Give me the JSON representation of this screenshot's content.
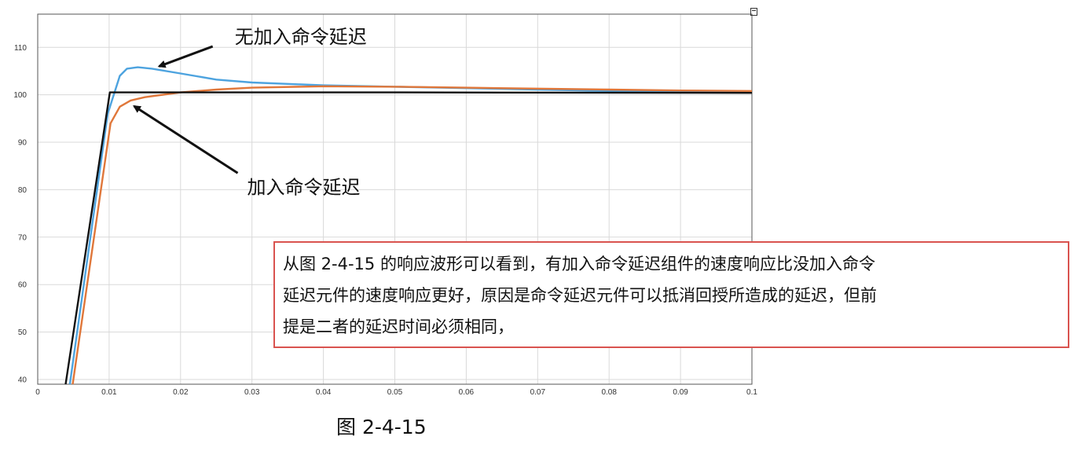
{
  "chart_data": {
    "type": "line",
    "x_range": [
      0,
      0.1
    ],
    "y_range": [
      39,
      117
    ],
    "x_ticks": [
      "0",
      "0.01",
      "0.02",
      "0.03",
      "0.04",
      "0.05",
      "0.06",
      "0.07",
      "0.08",
      "0.09",
      "0.1"
    ],
    "y_ticks": [
      "40",
      "50",
      "60",
      "70",
      "80",
      "90",
      "100",
      "110"
    ],
    "grid": true,
    "series": [
      {
        "color": "#4da3df",
        "points": [
          [
            0.0045,
            39
          ],
          [
            0.0098,
            96
          ],
          [
            0.0115,
            104
          ],
          [
            0.0125,
            105.5
          ],
          [
            0.014,
            105.8
          ],
          [
            0.016,
            105.5
          ],
          [
            0.02,
            104.5
          ],
          [
            0.025,
            103.2
          ],
          [
            0.03,
            102.6
          ],
          [
            0.04,
            102.0
          ],
          [
            0.05,
            101.7
          ],
          [
            0.06,
            101.4
          ],
          [
            0.07,
            101.1
          ],
          [
            0.08,
            100.8
          ],
          [
            0.09,
            100.6
          ],
          [
            0.1,
            100.5
          ]
        ]
      },
      {
        "color": "#e0773a",
        "points": [
          [
            0.0049,
            39
          ],
          [
            0.0102,
            94
          ],
          [
            0.0115,
            97.5
          ],
          [
            0.013,
            98.8
          ],
          [
            0.015,
            99.5
          ],
          [
            0.02,
            100.5
          ],
          [
            0.025,
            101.1
          ],
          [
            0.03,
            101.5
          ],
          [
            0.04,
            101.8
          ],
          [
            0.05,
            101.7
          ],
          [
            0.06,
            101.5
          ],
          [
            0.07,
            101.3
          ],
          [
            0.08,
            101.1
          ],
          [
            0.09,
            100.9
          ],
          [
            0.1,
            100.8
          ]
        ]
      },
      {
        "color": "#111111",
        "points": [
          [
            0.0039,
            39
          ],
          [
            0.0101,
            100.5
          ],
          [
            0.02,
            100.5
          ],
          [
            0.05,
            100.5
          ],
          [
            0.1,
            100.4
          ]
        ]
      }
    ],
    "annotations": [
      {
        "text": "无加入命令延迟",
        "arrow_from": [
          0.0245,
          110.2
        ],
        "arrow_to": [
          0.017,
          106
        ]
      },
      {
        "text": "加入命令延迟",
        "arrow_from": [
          0.028,
          83.5
        ],
        "arrow_to": [
          0.0135,
          97.6
        ]
      }
    ]
  },
  "note": {
    "lines": [
      "从图 2-4-15 的响应波形可以看到，有加入命令延迟组件的速度响应比没加入命令",
      "延迟元件的速度响应更好，原因是命令延迟元件可以抵消回授所造成的延迟，但前",
      "提是二者的延迟时间必须相同，"
    ],
    "border_color": "#d9534f"
  },
  "caption": "图 2-4-15"
}
